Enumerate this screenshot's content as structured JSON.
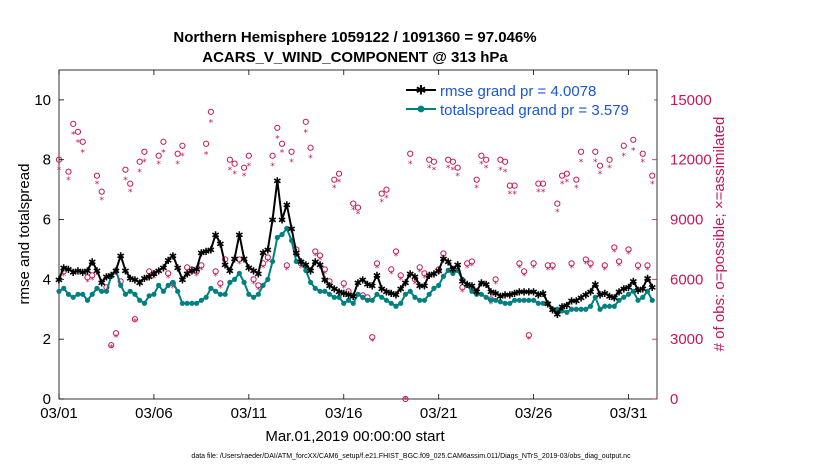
{
  "chart_data": {
    "type": "line",
    "title_line1": "Northern Hemisphere 1059122 / 1091360 = 97.046%",
    "title_line2": "ACARS_V_WIND_COMPONENT @ 313 hPa",
    "xlabel": "Mar.01,2019 00:00:00 start",
    "ylabel_left": "rmse and totalspread",
    "ylabel_right": "# of obs: o=possible; ×=assimilated",
    "footer": "data file: /Users/raeder/DAI/ATM_forcXX/CAM6_setup/f.e21.FHIST_BGC.f09_025.CAM6assim.011/Diags_NTrS_2019-03/obs_diag_output.nc",
    "xlim": [
      0,
      31.5
    ],
    "ylim_left": [
      0,
      11
    ],
    "ylim_right": [
      0,
      16500
    ],
    "x_tick_values": [
      0,
      5,
      10,
      15,
      20,
      25,
      30
    ],
    "x_tick_labels": [
      "03/01",
      "03/06",
      "03/11",
      "03/16",
      "03/21",
      "03/26",
      "03/31"
    ],
    "y_left_ticks": [
      "0",
      "2",
      "4",
      "6",
      "8",
      "10"
    ],
    "y_left_tick_values": [
      0,
      2,
      4,
      6,
      8,
      10
    ],
    "y_right_ticks": [
      "0",
      "3000",
      "6000",
      "9000",
      "12000",
      "15000"
    ],
    "y_right_tick_values": [
      0,
      3000,
      6000,
      9000,
      12000,
      15000
    ],
    "legend": [
      {
        "label": "rmse grand pr = 4.0078",
        "color": "#000000",
        "marker": "asterisk"
      },
      {
        "label": "totalspread grand pr = 3.579",
        "color": "#008080",
        "marker": "circle"
      }
    ],
    "colors": {
      "rmse": "#000000",
      "spread": "#008080",
      "obs": "#c2185b",
      "legend_text": "#1a56db"
    },
    "series": [
      {
        "name": "rmse",
        "axis": "left",
        "x": [
          0.0,
          0.25,
          0.5,
          0.75,
          1.0,
          1.25,
          1.5,
          1.75,
          2.0,
          2.25,
          2.5,
          2.75,
          3.0,
          3.25,
          3.5,
          3.75,
          4.0,
          4.25,
          4.5,
          4.75,
          5.0,
          5.25,
          5.5,
          5.75,
          6.0,
          6.25,
          6.5,
          6.75,
          7.0,
          7.25,
          7.5,
          7.75,
          8.0,
          8.25,
          8.5,
          8.75,
          9.0,
          9.25,
          9.5,
          9.75,
          10.0,
          10.25,
          10.5,
          10.75,
          11.0,
          11.25,
          11.5,
          11.75,
          12.0,
          12.25,
          12.5,
          12.75,
          13.0,
          13.25,
          13.5,
          13.75,
          14.0,
          14.25,
          14.5,
          14.75,
          15.0,
          15.25,
          15.5,
          15.75,
          16.0,
          16.25,
          16.5,
          16.75,
          17.0,
          17.25,
          17.5,
          17.75,
          18.0,
          18.25,
          18.5,
          18.75,
          19.0,
          19.25,
          19.5,
          19.75,
          20.0,
          20.25,
          20.5,
          20.75,
          21.0,
          21.25,
          21.5,
          21.75,
          22.0,
          22.25,
          22.5,
          22.75,
          23.0,
          23.25,
          23.5,
          23.75,
          24.0,
          24.25,
          24.5,
          24.75,
          25.0,
          25.25,
          25.5,
          25.75,
          26.0,
          26.25,
          26.5,
          26.75,
          27.0,
          27.25,
          27.5,
          27.75,
          28.0,
          28.25,
          28.5,
          28.75,
          29.0,
          29.25,
          29.5,
          29.75,
          30.0,
          30.25,
          30.5,
          30.75,
          31.0,
          31.25
        ],
        "values": [
          4.0,
          4.4,
          4.35,
          4.25,
          4.3,
          4.25,
          4.3,
          4.6,
          4.3,
          3.9,
          4.1,
          4.15,
          4.3,
          4.8,
          4.3,
          4.05,
          4.0,
          3.9,
          4.05,
          4.1,
          4.2,
          4.3,
          4.4,
          4.65,
          4.8,
          4.4,
          4.0,
          4.2,
          4.3,
          4.35,
          4.9,
          4.95,
          5.0,
          5.5,
          5.2,
          4.5,
          4.3,
          4.7,
          5.5,
          4.7,
          4.4,
          4.3,
          4.2,
          4.9,
          5.0,
          6.0,
          7.3,
          6.0,
          6.5,
          5.7,
          4.9,
          4.6,
          4.5,
          4.3,
          4.6,
          4.5,
          4.0,
          3.8,
          3.7,
          3.6,
          3.55,
          3.5,
          3.45,
          3.9,
          4.0,
          3.85,
          3.8,
          4.15,
          3.7,
          3.6,
          3.55,
          3.5,
          3.7,
          3.9,
          4.2,
          4.1,
          3.8,
          3.8,
          4.15,
          4.2,
          4.3,
          4.7,
          4.6,
          4.35,
          4.5,
          3.95,
          3.85,
          3.8,
          3.6,
          3.9,
          3.85,
          3.6,
          3.55,
          3.45,
          3.5,
          3.5,
          3.55,
          3.6,
          3.6,
          3.6,
          3.6,
          3.5,
          3.55,
          3.2,
          3.0,
          2.85,
          3.1,
          3.15,
          3.3,
          3.3,
          3.4,
          3.5,
          3.6,
          3.85,
          3.5,
          3.55,
          3.45,
          3.4,
          3.6,
          3.7,
          3.75,
          3.95,
          3.65,
          3.7,
          4.05,
          3.75
        ]
      },
      {
        "name": "totalspread",
        "axis": "left",
        "x": [
          0.0,
          0.25,
          0.5,
          0.75,
          1.0,
          1.25,
          1.5,
          1.75,
          2.0,
          2.25,
          2.5,
          2.75,
          3.0,
          3.25,
          3.5,
          3.75,
          4.0,
          4.25,
          4.5,
          4.75,
          5.0,
          5.25,
          5.5,
          5.75,
          6.0,
          6.25,
          6.5,
          6.75,
          7.0,
          7.25,
          7.5,
          7.75,
          8.0,
          8.25,
          8.5,
          8.75,
          9.0,
          9.25,
          9.5,
          9.75,
          10.0,
          10.25,
          10.5,
          10.75,
          11.0,
          11.25,
          11.5,
          11.75,
          12.0,
          12.25,
          12.5,
          12.75,
          13.0,
          13.25,
          13.5,
          13.75,
          14.0,
          14.25,
          14.5,
          14.75,
          15.0,
          15.25,
          15.5,
          15.75,
          16.0,
          16.25,
          16.5,
          16.75,
          17.0,
          17.25,
          17.5,
          17.75,
          18.0,
          18.25,
          18.5,
          18.75,
          19.0,
          19.25,
          19.5,
          19.75,
          20.0,
          20.25,
          20.5,
          20.75,
          21.0,
          21.25,
          21.5,
          21.75,
          22.0,
          22.25,
          22.5,
          22.75,
          23.0,
          23.25,
          23.5,
          23.75,
          24.0,
          24.25,
          24.5,
          24.75,
          25.0,
          25.25,
          25.5,
          25.75,
          26.0,
          26.25,
          26.5,
          26.75,
          27.0,
          27.25,
          27.5,
          27.75,
          28.0,
          28.25,
          28.5,
          28.75,
          29.0,
          29.25,
          29.5,
          29.75,
          30.0,
          30.25,
          30.5,
          30.75,
          31.0,
          31.25
        ],
        "values": [
          3.6,
          3.7,
          3.5,
          3.4,
          3.5,
          3.5,
          3.3,
          3.5,
          3.7,
          3.6,
          3.6,
          4.1,
          4.3,
          3.8,
          3.5,
          3.6,
          3.5,
          3.3,
          3.2,
          3.45,
          3.5,
          3.8,
          3.6,
          3.8,
          3.9,
          3.6,
          3.2,
          3.2,
          3.2,
          3.2,
          3.3,
          3.4,
          3.7,
          3.6,
          3.5,
          3.5,
          3.9,
          4.0,
          4.2,
          3.9,
          3.5,
          3.4,
          3.5,
          3.8,
          4.0,
          4.6,
          5.4,
          5.5,
          5.7,
          5.3,
          4.6,
          4.6,
          4.3,
          3.9,
          3.7,
          3.6,
          3.6,
          3.5,
          3.4,
          3.4,
          3.2,
          3.3,
          3.2,
          3.5,
          3.4,
          3.3,
          3.3,
          3.5,
          3.4,
          3.3,
          3.2,
          3.1,
          3.2,
          3.5,
          3.6,
          3.4,
          3.3,
          3.3,
          3.5,
          3.7,
          3.8,
          4.1,
          4.3,
          4.2,
          4.3,
          4.0,
          3.8,
          3.6,
          3.5,
          3.5,
          3.4,
          3.3,
          3.3,
          3.25,
          3.2,
          3.2,
          3.3,
          3.3,
          3.3,
          3.3,
          3.3,
          3.2,
          3.2,
          3.2,
          3.0,
          3.0,
          2.95,
          2.9,
          3.0,
          3.0,
          3.0,
          3.0,
          3.1,
          3.4,
          3.0,
          3.1,
          3.1,
          3.1,
          3.3,
          3.4,
          3.5,
          3.6,
          3.3,
          3.4,
          3.6,
          3.3
        ]
      },
      {
        "name": "obs_possible",
        "axis": "right",
        "x": [
          0.0,
          0.25,
          0.5,
          0.75,
          1.0,
          1.25,
          1.5,
          1.75,
          2.0,
          2.25,
          2.5,
          2.75,
          3.0,
          3.25,
          3.5,
          3.75,
          4.0,
          4.25,
          4.5,
          4.75,
          5.0,
          5.25,
          5.5,
          5.75,
          6.0,
          6.25,
          6.5,
          6.75,
          7.0,
          7.25,
          7.5,
          7.75,
          8.0,
          8.25,
          8.5,
          8.75,
          9.0,
          9.25,
          9.5,
          9.75,
          10.0,
          10.25,
          10.5,
          10.75,
          11.0,
          11.25,
          11.5,
          11.75,
          12.0,
          12.25,
          12.5,
          12.75,
          13.0,
          13.25,
          13.5,
          13.75,
          14.0,
          14.25,
          14.5,
          14.75,
          15.0,
          15.25,
          15.5,
          15.75,
          16.0,
          16.25,
          16.5,
          16.75,
          17.0,
          17.25,
          17.5,
          17.75,
          18.0,
          18.25,
          18.5,
          18.75,
          19.0,
          19.25,
          19.5,
          19.75,
          20.0,
          20.25,
          20.5,
          20.75,
          21.0,
          21.25,
          21.5,
          21.75,
          22.0,
          22.25,
          22.5,
          22.75,
          23.0,
          23.25,
          23.5,
          23.75,
          24.0,
          24.25,
          24.5,
          24.75,
          25.0,
          25.25,
          25.5,
          25.75,
          26.0,
          26.25,
          26.5,
          26.75,
          27.0,
          27.25,
          27.5,
          27.75,
          28.0,
          28.25,
          28.5,
          28.75,
          29.0,
          29.25,
          29.5,
          29.75,
          30.0,
          30.25,
          30.5,
          30.75,
          31.0,
          31.25
        ],
        "values": [
          12000,
          6400,
          11400,
          13800,
          13400,
          12900,
          6100,
          6200,
          11200,
          10400,
          5600,
          2700,
          3300,
          5900,
          11500,
          10800,
          4000,
          11900,
          12400,
          6400,
          6300,
          12200,
          12900,
          6300,
          5800,
          12300,
          12700,
          6600,
          6500,
          6400,
          6700,
          12800,
          14400,
          6400,
          5800,
          7000,
          12000,
          11800,
          7000,
          11600,
          12200,
          6000,
          5700,
          6800,
          7100,
          12200,
          13600,
          12800,
          6700,
          12400,
          7500,
          6800,
          13900,
          12600,
          7400,
          7200,
          6500,
          5900,
          11000,
          11300,
          5800,
          5400,
          9800,
          9600,
          5200,
          5100,
          3100,
          6800,
          10300,
          10500,
          6500,
          7400,
          6200,
          0,
          12300,
          6000,
          6600,
          6300,
          12000,
          11900,
          6500,
          7300,
          12000,
          11900,
          11600,
          5600,
          6800,
          6900,
          11000,
          12200,
          12000,
          5000,
          6000,
          12000,
          11900,
          10700,
          10700,
          6800,
          6400,
          3200,
          6800,
          10800,
          10800,
          6700,
          6700,
          9800,
          11200,
          11300,
          6800,
          11000,
          12400,
          7000,
          6800,
          12400,
          11700,
          6700,
          12000,
          7600,
          6900,
          12700,
          7500,
          13000,
          6700,
          12300,
          6700,
          11200
        ]
      },
      {
        "name": "obs_assimilated",
        "axis": "right",
        "x": [
          0.0,
          0.25,
          0.5,
          0.75,
          1.0,
          1.25,
          1.5,
          1.75,
          2.0,
          2.25,
          2.5,
          2.75,
          3.0,
          3.25,
          3.5,
          3.75,
          4.0,
          4.25,
          4.5,
          4.75,
          5.0,
          5.25,
          5.5,
          5.75,
          6.0,
          6.25,
          6.5,
          6.75,
          7.0,
          7.25,
          7.5,
          7.75,
          8.0,
          8.25,
          8.5,
          8.75,
          9.0,
          9.25,
          9.5,
          9.75,
          10.0,
          10.25,
          10.5,
          10.75,
          11.0,
          11.25,
          11.5,
          11.75,
          12.0,
          12.25,
          12.5,
          12.75,
          13.0,
          13.25,
          13.5,
          13.75,
          14.0,
          14.25,
          14.5,
          14.75,
          15.0,
          15.25,
          15.5,
          15.75,
          16.0,
          16.25,
          16.5,
          16.75,
          17.0,
          17.25,
          17.5,
          17.75,
          18.0,
          18.25,
          18.5,
          18.75,
          19.0,
          19.25,
          19.5,
          19.75,
          20.0,
          20.25,
          20.5,
          20.75,
          21.0,
          21.25,
          21.5,
          21.75,
          22.0,
          22.25,
          22.5,
          22.75,
          23.0,
          23.25,
          23.5,
          23.75,
          24.0,
          24.25,
          24.5,
          24.75,
          25.0,
          25.25,
          25.5,
          25.75,
          26.0,
          26.25,
          26.5,
          26.75,
          27.0,
          27.25,
          27.5,
          27.75,
          28.0,
          28.25,
          28.5,
          28.75,
          29.0,
          29.25,
          29.5,
          29.75,
          30.0,
          30.25,
          30.5,
          30.75,
          31.0,
          31.25
        ],
        "values": [
          11500,
          6200,
          11000,
          13300,
          12900,
          12400,
          5900,
          6000,
          10800,
          10000,
          5400,
          2600,
          3100,
          5700,
          11000,
          10400,
          3900,
          11400,
          11900,
          6200,
          6100,
          11800,
          12400,
          6100,
          5600,
          11800,
          12200,
          6400,
          6300,
          6200,
          6500,
          12300,
          13900,
          6200,
          5600,
          6800,
          11500,
          11300,
          6800,
          11200,
          11700,
          5800,
          5500,
          6600,
          6900,
          11700,
          13100,
          12400,
          6500,
          11900,
          7300,
          6600,
          13400,
          12100,
          7200,
          7000,
          6300,
          5700,
          10600,
          10900,
          5600,
          5200,
          9500,
          9300,
          5000,
          4900,
          2900,
          6600,
          9900,
          10100,
          6300,
          7200,
          6000,
          0,
          11800,
          5800,
          6400,
          6100,
          11600,
          11500,
          6300,
          7100,
          11600,
          11500,
          11200,
          5400,
          6600,
          6700,
          10600,
          11800,
          11600,
          4800,
          5800,
          11500,
          11400,
          10300,
          10300,
          6600,
          6200,
          3000,
          6600,
          10400,
          10400,
          6500,
          6500,
          9400,
          10800,
          10900,
          6600,
          10600,
          11900,
          6800,
          6600,
          11900,
          11300,
          6500,
          11600,
          7400,
          6700,
          12200,
          7300,
          12500,
          6500,
          11900,
          6500,
          10800
        ]
      }
    ]
  }
}
